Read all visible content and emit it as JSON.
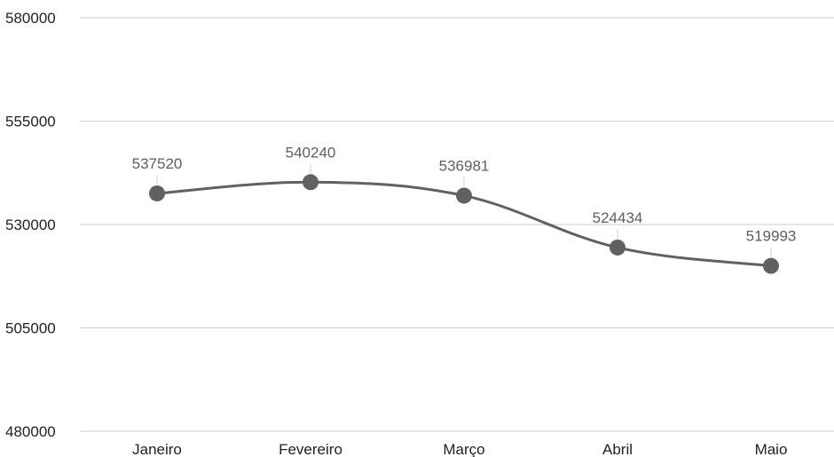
{
  "chart_data": {
    "type": "line",
    "title": "",
    "xlabel": "",
    "ylabel": "",
    "categories": [
      "Janeiro",
      "Fevereiro",
      "Março",
      "Abril",
      "Maio"
    ],
    "series": [
      {
        "values": [
          537520,
          540240,
          536981,
          524434,
          519993
        ],
        "color": "#616161"
      }
    ],
    "ylim": [
      480000,
      580000
    ],
    "yticks": [
      "580000",
      "555000",
      "530000",
      "505000",
      "480000"
    ],
    "data_labels": [
      "537520",
      "540240",
      "536981",
      "524434",
      "519993"
    ],
    "grid": true,
    "legend": "none",
    "smooth": true
  },
  "colors": {
    "grid": "#cfcfcf",
    "axis_text": "#222222",
    "data_label": "#5f5f5f",
    "series": "#616161"
  }
}
